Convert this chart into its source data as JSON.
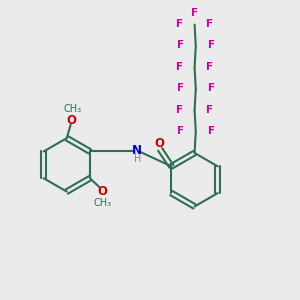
{
  "bg_color": "#ebebeb",
  "bond_color": "#2d6e55",
  "F_color": "#cc00aa",
  "O_color": "#cc0000",
  "N_color": "#0000cc",
  "H_color": "#888888",
  "line_width": 1.5,
  "figsize": [
    3.0,
    3.0
  ],
  "dpi": 100,
  "xlim": [
    0,
    10
  ],
  "ylim": [
    0,
    10
  ]
}
